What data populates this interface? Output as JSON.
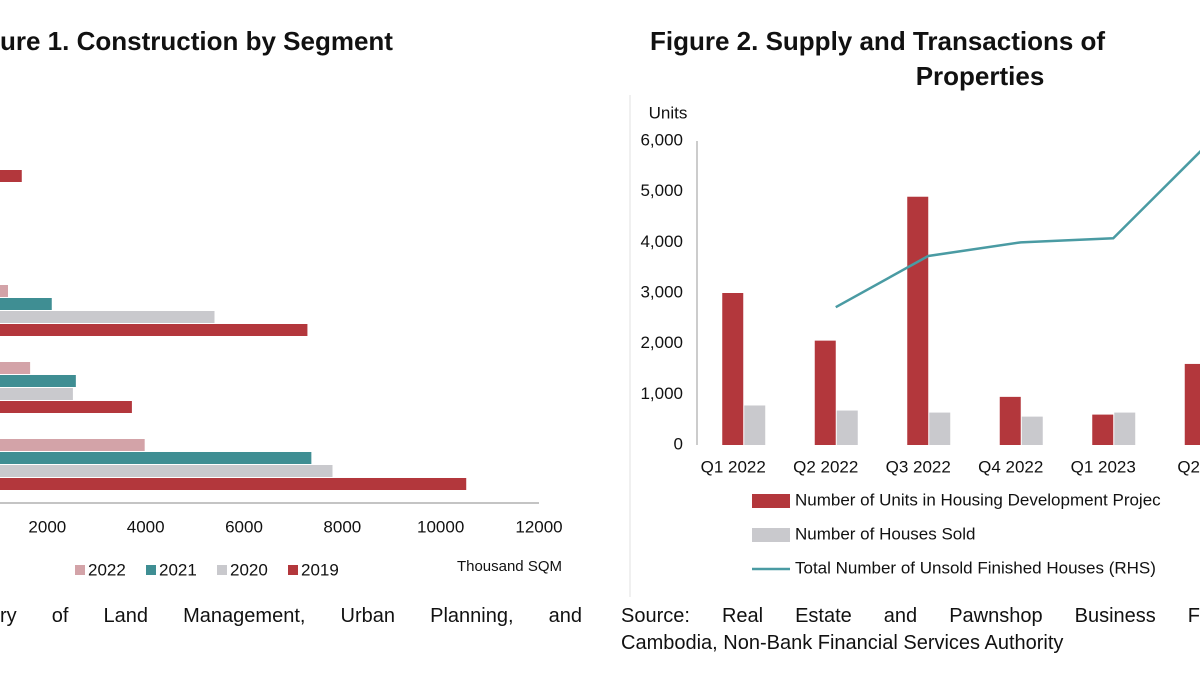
{
  "chart_data": [
    {
      "type": "bar",
      "orientation": "horizontal",
      "title": "ure 1. Construction by Segment",
      "categories": [
        null,
        null,
        null,
        null,
        null
      ],
      "series": [
        {
          "name": "2022",
          "color": "#d3a3a8",
          "values": [
            null,
            null,
            1200,
            1650,
            3980
          ]
        },
        {
          "name": "2021",
          "color": "#3f8e93",
          "values": [
            null,
            null,
            2090,
            2580,
            7370
          ]
        },
        {
          "name": "2020",
          "color": "#c9c9cd",
          "values": [
            null,
            null,
            5400,
            2520,
            7800
          ]
        },
        {
          "name": "2019",
          "color": "#b3373c",
          "values": [
            1480,
            null,
            7290,
            3720,
            10520
          ]
        }
      ],
      "xlabel": "Thousand SQM",
      "xlim": [
        0,
        12000
      ],
      "xticks": [
        2000,
        4000,
        6000,
        8000,
        10000,
        12000
      ],
      "source": [
        "ry of Land Management, Urban Planning, and"
      ]
    },
    {
      "type": "bar",
      "title": [
        "Figure 2. Supply and Transactions of",
        "Properties"
      ],
      "ylabel": "Units",
      "categories": [
        "Q1 2022",
        "Q2 2022",
        "Q3 2022",
        "Q4 2022",
        "Q1 2023",
        "Q2 2"
      ],
      "series": [
        {
          "name": "Number of Units in Housing Development Projec",
          "color": "#b3373c",
          "values": [
            3000,
            2060,
            4900,
            950,
            600,
            1600
          ]
        },
        {
          "name": "Number of Houses Sold",
          "color": "#c9c9cd",
          "values": [
            780,
            680,
            640,
            560,
            640,
            null
          ]
        },
        {
          "name": "Total Number of Unsold Finished Houses (RHS)",
          "type": "line",
          "color": "#4a9ba3",
          "values": [
            null,
            2720,
            3730,
            4000,
            4080,
            5900
          ]
        }
      ],
      "ylim": [
        0,
        6000
      ],
      "yticks": [
        0,
        {
          "value": 1000,
          "label": "1,000"
        },
        {
          "value": 2000,
          "label": "2,000"
        },
        {
          "value": 3000,
          "label": "3,000"
        },
        {
          "value": 4000,
          "label": "4,000"
        },
        {
          "value": 5000,
          "label": "5,000"
        },
        {
          "value": 6000,
          "label": "6,000"
        }
      ],
      "source": [
        "Source: Real Estate and Pawnshop Business F",
        "Cambodia, Non-Bank Financial Services Authority"
      ]
    }
  ]
}
